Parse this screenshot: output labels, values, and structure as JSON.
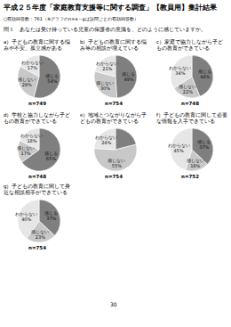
{
  "header": {
    "title": "平成２５年度「家庭教育支援等に関する調査」【教員用】集計結果",
    "note": "○有効回答数：761（※グラフのn=a～gは設問ごとの有効回答数）",
    "question": "問１　あなたは受け持っている児童の保護者の意識を、どのように感じていますか。"
  },
  "chart_data": [
    {
      "type": "pie",
      "title": "a）子どもの教育に関する悩みや不安、孤立感がある",
      "subtitle": "n=749",
      "categories": [
        "感じる",
        "感じない",
        "わからない"
      ],
      "values": [
        54,
        29,
        17
      ],
      "value_labels": [
        "54%",
        "29%",
        "17%"
      ],
      "colors": [
        "#7f7f7f",
        "#c8c8c8",
        "#e6e6e6"
      ],
      "data_labels": true
    },
    {
      "type": "pie",
      "title": "b）子どもの教育に関する悩み等の相談が増えている",
      "subtitle": "n=754",
      "categories": [
        "感じる",
        "感じない",
        "わからない"
      ],
      "values": [
        49,
        30,
        21
      ],
      "value_labels": [
        "49%",
        "30%",
        "21%"
      ],
      "colors": [
        "#7f7f7f",
        "#c8c8c8",
        "#e6e6e6"
      ],
      "data_labels": true
    },
    {
      "type": "pie",
      "title": "c）家庭で協力しながら子どもの教育ができている",
      "subtitle": "n=748",
      "categories": [
        "感じる",
        "感じない",
        "わからない"
      ],
      "values": [
        44,
        22,
        34
      ],
      "value_labels": [
        "44%",
        "22%",
        "34%"
      ],
      "colors": [
        "#7f7f7f",
        "#c8c8c8",
        "#e6e6e6"
      ],
      "data_labels": true
    },
    {
      "type": "pie",
      "title": "d）学校と協力しながら子どもの教育ができている",
      "subtitle": "n=748",
      "categories": [
        "感じる",
        "感じない",
        "わからない"
      ],
      "values": [
        65,
        17,
        18
      ],
      "value_labels": [
        "65%",
        "17%",
        "18%"
      ],
      "colors": [
        "#7f7f7f",
        "#c8c8c8",
        "#e6e6e6"
      ],
      "data_labels": true
    },
    {
      "type": "pie",
      "title": "e）地域とつながりながら子どもの教育ができている",
      "subtitle": "n=754",
      "categories": [
        "感じる",
        "感じない",
        "わからない"
      ],
      "values": [
        21,
        55,
        24
      ],
      "value_labels": [
        "21%",
        "55%",
        "24%"
      ],
      "colors": [
        "#7f7f7f",
        "#c8c8c8",
        "#e6e6e6"
      ],
      "data_labels": true
    },
    {
      "type": "pie",
      "title": "f）子どもの教育に関して必要な情報を入手できている",
      "subtitle": "n=752",
      "categories": [
        "感じる",
        "感じない",
        "わからない"
      ],
      "values": [
        37,
        18,
        45
      ],
      "value_labels": [
        "37%",
        "18%",
        "45%"
      ],
      "colors": [
        "#7f7f7f",
        "#c8c8c8",
        "#e6e6e6"
      ],
      "data_labels": true
    },
    {
      "type": "pie",
      "title": "g）子どもの教育に関して身近な相談相手ができている",
      "subtitle": "n=754",
      "categories": [
        "感じる",
        "感じない",
        "わからない"
      ],
      "values": [
        37,
        23,
        40
      ],
      "value_labels": [
        "37%",
        "23%",
        "40%"
      ],
      "colors": [
        "#7f7f7f",
        "#c8c8c8",
        "#e6e6e6"
      ],
      "data_labels": true
    }
  ],
  "footer": {
    "page": "30"
  }
}
